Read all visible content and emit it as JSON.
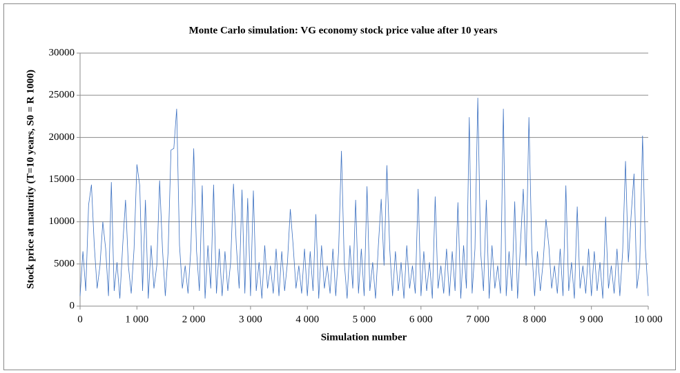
{
  "chart_data": {
    "type": "line",
    "title": "Monte Carlo simulation: VG economy stock price value after 10 years",
    "x_label": "Simulation number",
    "y_label": "Stock price at maturity (T=10 years, S0 = R 1000)",
    "color": "#3a6fc0",
    "grid": true,
    "xlim": [
      0,
      10000
    ],
    "ylim": [
      0,
      30000
    ],
    "xticks": [
      0,
      {
        "value": 1000,
        "label": "1 000"
      },
      {
        "value": 2000,
        "label": "2 000"
      },
      {
        "value": 3000,
        "label": "3 000"
      },
      {
        "value": 4000,
        "label": "4 000"
      },
      {
        "value": 5000,
        "label": "5 000"
      },
      {
        "value": 6000,
        "label": "6 000"
      },
      {
        "value": 7000,
        "label": "7 000"
      },
      {
        "value": 8000,
        "label": "8 000"
      },
      {
        "value": 9000,
        "label": "9 000"
      },
      {
        "value": 10000,
        "label": "10 000"
      }
    ],
    "yticks": [
      0,
      5000,
      10000,
      15000,
      20000,
      25000,
      30000
    ],
    "x": [
      0,
      50,
      100,
      150,
      200,
      250,
      300,
      350,
      400,
      450,
      500,
      550,
      600,
      650,
      700,
      750,
      800,
      850,
      900,
      950,
      1000,
      1050,
      1100,
      1150,
      1200,
      1250,
      1300,
      1350,
      1400,
      1450,
      1500,
      1550,
      1600,
      1650,
      1700,
      1750,
      1800,
      1850,
      1900,
      1950,
      2000,
      2050,
      2100,
      2150,
      2200,
      2250,
      2300,
      2350,
      2400,
      2450,
      2500,
      2550,
      2600,
      2650,
      2700,
      2750,
      2800,
      2850,
      2900,
      2950,
      3000,
      3050,
      3100,
      3150,
      3200,
      3250,
      3300,
      3350,
      3400,
      3450,
      3500,
      3550,
      3600,
      3650,
      3700,
      3750,
      3800,
      3850,
      3900,
      3950,
      4000,
      4050,
      4100,
      4150,
      4200,
      4250,
      4300,
      4350,
      4400,
      4450,
      4500,
      4550,
      4600,
      4650,
      4700,
      4750,
      4800,
      4850,
      4900,
      4950,
      5000,
      5050,
      5100,
      5150,
      5200,
      5250,
      5300,
      5350,
      5400,
      5450,
      5500,
      5550,
      5600,
      5650,
      5700,
      5750,
      5800,
      5850,
      5900,
      5950,
      6000,
      6050,
      6100,
      6150,
      6200,
      6250,
      6300,
      6350,
      6400,
      6450,
      6500,
      6550,
      6600,
      6650,
      6700,
      6750,
      6800,
      6850,
      6900,
      6950,
      7000,
      7050,
      7100,
      7150,
      7200,
      7250,
      7300,
      7350,
      7400,
      7450,
      7500,
      7550,
      7600,
      7650,
      7700,
      7750,
      7800,
      7850,
      7900,
      7950,
      8000,
      8050,
      8100,
      8150,
      8200,
      8250,
      8300,
      8350,
      8400,
      8450,
      8500,
      8550,
      8600,
      8650,
      8700,
      8750,
      8800,
      8850,
      8900,
      8950,
      9000,
      9050,
      9100,
      9150,
      9200,
      9250,
      9300,
      9350,
      9400,
      9450,
      9500,
      9550,
      9600,
      9650,
      9700,
      9750,
      9800,
      9850,
      9900,
      9950,
      10000
    ],
    "values": [
      1200,
      6500,
      1800,
      12000,
      14400,
      7200,
      2100,
      4800,
      10000,
      6800,
      1200,
      14700,
      1800,
      5200,
      900,
      7200,
      12600,
      4800,
      1500,
      6800,
      16800,
      14300,
      1800,
      12600,
      900,
      7200,
      2100,
      4800,
      14900,
      6800,
      1200,
      6500,
      18500,
      18700,
      23400,
      7200,
      2100,
      4800,
      1500,
      6800,
      18700,
      6500,
      1800,
      14300,
      900,
      7200,
      2100,
      14400,
      1500,
      6800,
      1200,
      6500,
      1800,
      5200,
      14500,
      7200,
      2100,
      13800,
      1500,
      12800,
      1200,
      13700,
      1800,
      5200,
      900,
      7200,
      2100,
      4800,
      1500,
      6800,
      1200,
      6500,
      1800,
      5200,
      11500,
      7200,
      2100,
      4800,
      1500,
      6800,
      1200,
      6500,
      1800,
      10900,
      900,
      7200,
      2100,
      4800,
      1500,
      6800,
      1200,
      6500,
      18400,
      5200,
      900,
      7200,
      2100,
      12600,
      1500,
      6800,
      1200,
      14200,
      1800,
      5200,
      900,
      7200,
      12700,
      4800,
      16700,
      6800,
      1200,
      6500,
      1800,
      5200,
      900,
      7200,
      2100,
      4800,
      1500,
      13900,
      1200,
      6500,
      1800,
      5200,
      900,
      13000,
      2100,
      4800,
      1500,
      6800,
      1200,
      6500,
      1800,
      12300,
      900,
      7200,
      2100,
      22400,
      1500,
      6800,
      24700,
      6500,
      1800,
      12600,
      900,
      7200,
      2100,
      4800,
      1500,
      23400,
      1200,
      6500,
      1800,
      12400,
      900,
      7200,
      13900,
      4800,
      22400,
      6800,
      1200,
      6500,
      1800,
      5200,
      10300,
      7200,
      2100,
      4800,
      1500,
      6800,
      1200,
      14300,
      1800,
      5200,
      900,
      11800,
      2100,
      4800,
      1500,
      6800,
      1200,
      6500,
      1800,
      5200,
      900,
      10600,
      2100,
      4800,
      1500,
      6800,
      1200,
      6500,
      17200,
      5200,
      10900,
      15700,
      2100,
      4800,
      20200,
      6800,
      1200
    ]
  }
}
